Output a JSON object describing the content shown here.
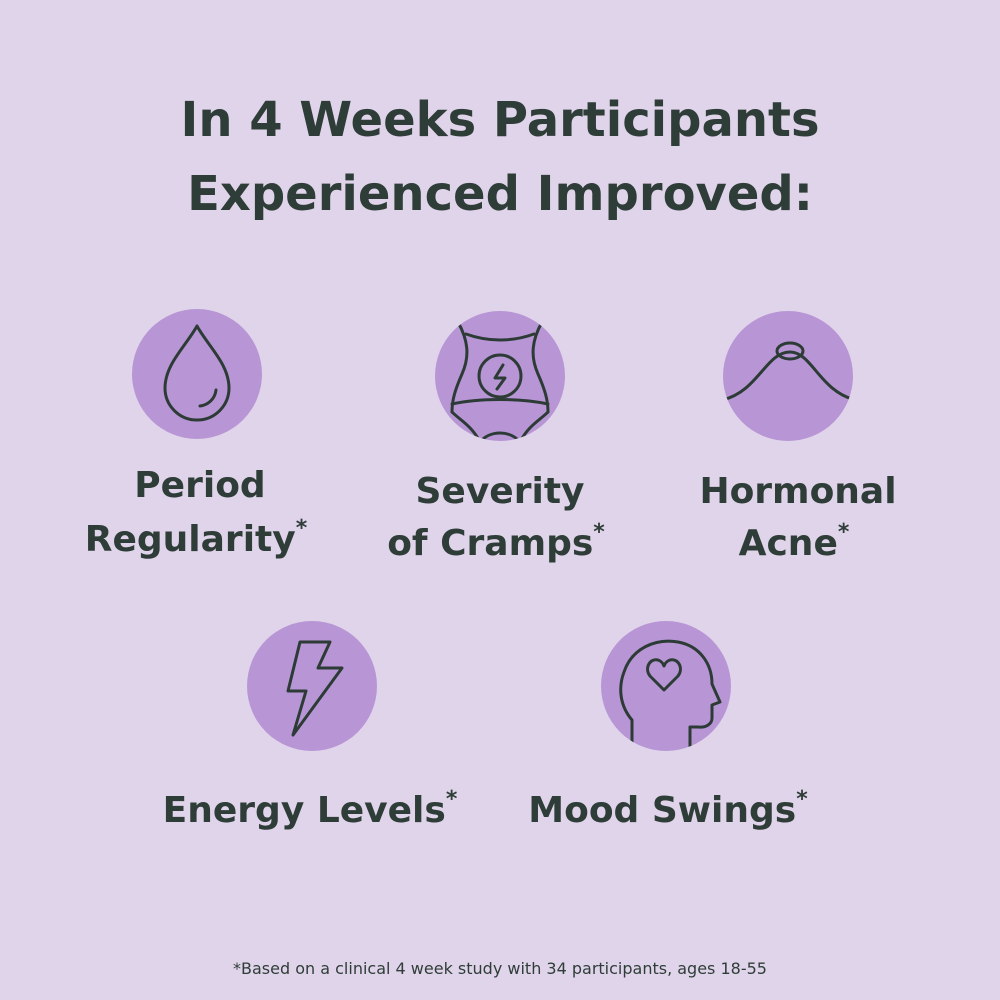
{
  "header": {
    "title": [
      "In 4 Weeks Participants",
      "Experienced Improved:"
    ]
  },
  "items": [
    {
      "label": [
        "Period",
        "Regularity"
      ],
      "mark": "*"
    },
    {
      "label": [
        "Severity",
        "of Cramps"
      ],
      "mark": "*"
    },
    {
      "label": [
        "Hormonal",
        "Acne"
      ],
      "mark": "*"
    },
    {
      "label": [
        "Energy Levels"
      ],
      "mark": "*"
    },
    {
      "label": [
        "Mood Swings"
      ],
      "mark": "*"
    }
  ],
  "footnote": "*Based on a clinical 4 week study with 34 participants, ages 18-55"
}
